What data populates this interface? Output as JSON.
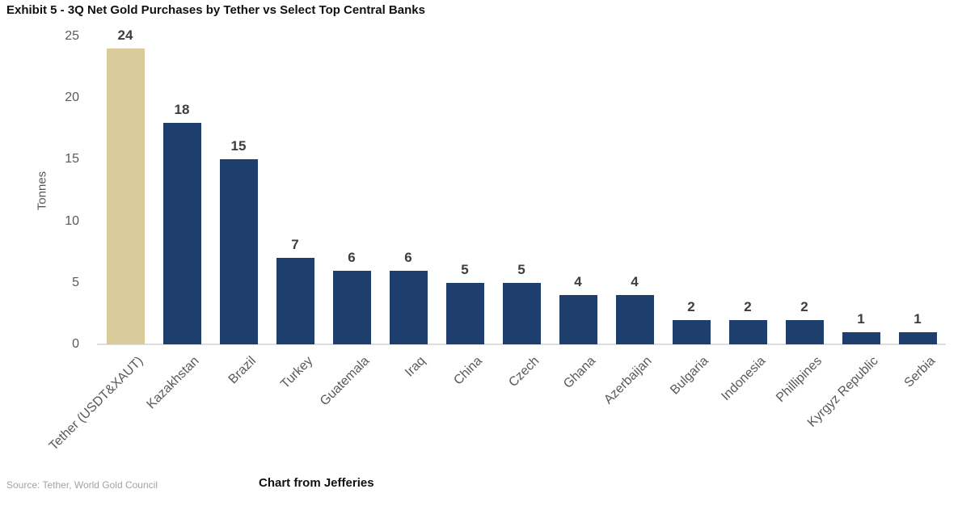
{
  "title": "Exhibit 5 - 3Q Net Gold Purchases by Tether vs Select Top Central Banks",
  "footer": {
    "source": "Source: Tether, World Gold Council",
    "credit": "Chart from Jefferies"
  },
  "chart_data": {
    "type": "bar",
    "title": "Exhibit 5 - 3Q Net Gold Purchases by Tether vs Select Top Central Banks",
    "xlabel": "",
    "ylabel": "Tonnes",
    "ylim": [
      0,
      25
    ],
    "yticks": [
      0,
      5,
      10,
      15,
      20,
      25
    ],
    "grid": false,
    "legend": false,
    "value_labels": true,
    "categories": [
      "Tether (USDT&XAUT)",
      "Kazakhstan",
      "Brazil",
      "Turkey",
      "Guatemala",
      "Iraq",
      "China",
      "Czech",
      "Ghana",
      "Azerbaijan",
      "Bulgaria",
      "Indonesia",
      "Phillipines",
      "Kyrgyz Republic",
      "Serbia"
    ],
    "values": [
      24,
      18,
      15,
      7,
      6,
      6,
      5,
      5,
      4,
      4,
      2,
      2,
      2,
      1,
      1
    ],
    "colors": {
      "highlight_index": 0,
      "highlight_bar": "#d9cb9c",
      "default_bar": "#1e3e6d",
      "baseline": "#dedede",
      "tick_text": "#595959",
      "value_label_text": "#3d3d3d"
    }
  }
}
